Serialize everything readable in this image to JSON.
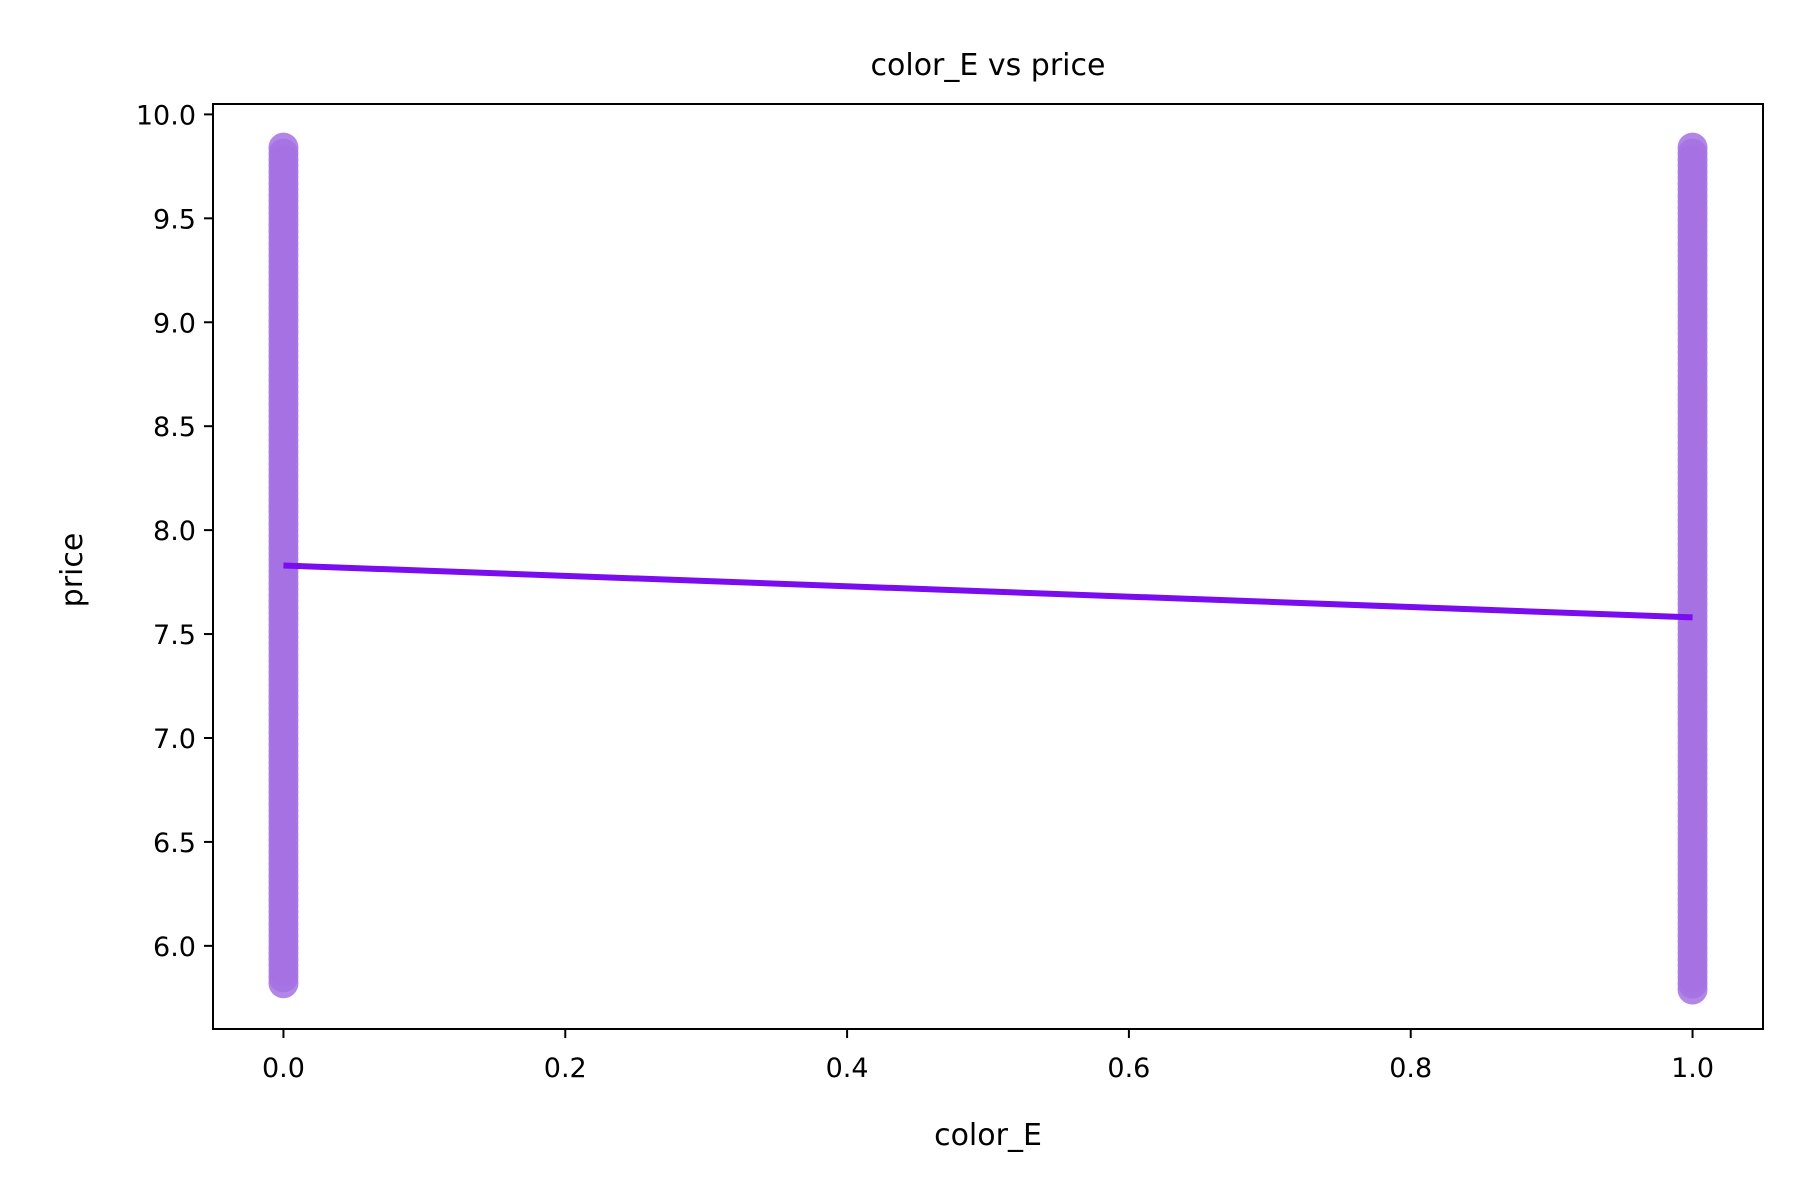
{
  "chart_data": {
    "type": "scatter",
    "title": "color_E vs price",
    "xlabel": "color_E",
    "ylabel": "price",
    "xlim": [
      -0.05,
      1.05
    ],
    "ylim": [
      5.6,
      10.05
    ],
    "xticks": [
      0.0,
      0.2,
      0.4,
      0.6,
      0.8,
      1.0
    ],
    "xtick_labels": [
      "0.0",
      "0.2",
      "0.4",
      "0.6",
      "0.8",
      "1.0"
    ],
    "yticks": [
      6.0,
      6.5,
      7.0,
      7.5,
      8.0,
      8.5,
      9.0,
      9.5,
      10.0
    ],
    "ytick_labels": [
      "6.0",
      "6.5",
      "7.0",
      "7.5",
      "8.0",
      "8.5",
      "9.0",
      "9.5",
      "10.0"
    ],
    "grid": false,
    "series": [
      {
        "kind": "points",
        "color": "#a571e3",
        "groups": [
          {
            "x": 0,
            "y_min": 5.82,
            "y_max": 9.84
          },
          {
            "x": 1,
            "y_min": 5.79,
            "y_max": 9.84
          }
        ]
      },
      {
        "kind": "regression-line",
        "color": "#7a0cf0",
        "x": [
          0,
          1
        ],
        "y": [
          7.83,
          7.58
        ]
      }
    ]
  }
}
